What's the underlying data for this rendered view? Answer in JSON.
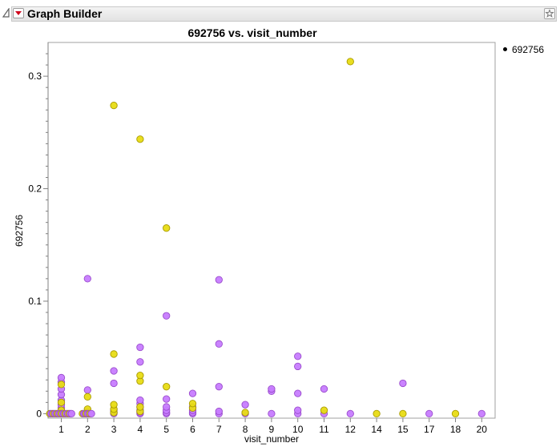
{
  "window": {
    "title": "Graph Builder",
    "icons": {
      "collapse": "disclosure-triangle-icon",
      "menu": "red-triangle-menu-icon",
      "star": "star-icon"
    }
  },
  "legend": {
    "label": "692756"
  },
  "colors": {
    "purple": "#c77cff",
    "purple_stroke": "#9a4ccc",
    "yellow": "#e8dc14",
    "yellow_stroke": "#a89a00"
  },
  "chart_data": {
    "type": "scatter",
    "title": "692756 vs. visit_number",
    "xlabel": "visit_number",
    "ylabel": "692756",
    "categories": [
      "1",
      "2",
      "3",
      "4",
      "5",
      "6",
      "7",
      "8",
      "9",
      "10",
      "11",
      "12",
      "14",
      "15",
      "17",
      "18",
      "20"
    ],
    "yticks": [
      0,
      0.1,
      0.2,
      0.3
    ],
    "ytick_labels": [
      "0",
      "0.1",
      "0.2",
      "0.3"
    ],
    "ylim": [
      -0.004,
      0.33
    ],
    "grid": false,
    "legend_position": "top-right",
    "series": [
      {
        "color_name": "purple",
        "points": [
          [
            "1",
            0
          ],
          [
            "1",
            0.002
          ],
          [
            "1",
            0.005
          ],
          [
            "1",
            0.008
          ],
          [
            "1",
            0.012
          ],
          [
            "1",
            0.017
          ],
          [
            "1",
            0.022
          ],
          [
            "1",
            0.028
          ],
          [
            "1",
            0.032
          ],
          [
            "2",
            0
          ],
          [
            "2",
            0.001
          ],
          [
            "2",
            0.002
          ],
          [
            "2",
            0.021
          ],
          [
            "2",
            0.12
          ],
          [
            "3",
            0
          ],
          [
            "3",
            0.001
          ],
          [
            "3",
            0.003
          ],
          [
            "3",
            0.027
          ],
          [
            "3",
            0.038
          ],
          [
            "4",
            0
          ],
          [
            "4",
            0.001
          ],
          [
            "4",
            0.003
          ],
          [
            "4",
            0.006
          ],
          [
            "4",
            0.009
          ],
          [
            "4",
            0.012
          ],
          [
            "4",
            0.046
          ],
          [
            "4",
            0.059
          ],
          [
            "5",
            0
          ],
          [
            "5",
            0.001
          ],
          [
            "5",
            0.003
          ],
          [
            "5",
            0.006
          ],
          [
            "5",
            0.013
          ],
          [
            "5",
            0.087
          ],
          [
            "6",
            0
          ],
          [
            "6",
            0.001
          ],
          [
            "6",
            0.003
          ],
          [
            "6",
            0.006
          ],
          [
            "6",
            0.018
          ],
          [
            "7",
            0
          ],
          [
            "7",
            0.002
          ],
          [
            "7",
            0.024
          ],
          [
            "7",
            0.062
          ],
          [
            "7",
            0.119
          ],
          [
            "8",
            0
          ],
          [
            "8",
            0.008
          ],
          [
            "9",
            0
          ],
          [
            "9",
            0.02
          ],
          [
            "9",
            0.022
          ],
          [
            "10",
            0
          ],
          [
            "10",
            0.003
          ],
          [
            "10",
            0.018
          ],
          [
            "10",
            0.042
          ],
          [
            "10",
            0.051
          ],
          [
            "11",
            0
          ],
          [
            "11",
            0.022
          ],
          [
            "12",
            0
          ],
          [
            "15",
            0.027
          ],
          [
            "17",
            0
          ],
          [
            "20",
            0
          ]
        ]
      },
      {
        "color_name": "yellow",
        "points": [
          [
            "1",
            0
          ],
          [
            "1",
            0.003
          ],
          [
            "1",
            0.01
          ],
          [
            "1",
            0.026
          ],
          [
            "2",
            0
          ],
          [
            "2",
            0.004
          ],
          [
            "2",
            0.015
          ],
          [
            "3",
            0.001
          ],
          [
            "3",
            0.004
          ],
          [
            "3",
            0.008
          ],
          [
            "3",
            0.053
          ],
          [
            "3",
            0.274
          ],
          [
            "4",
            0.002
          ],
          [
            "4",
            0.006
          ],
          [
            "4",
            0.029
          ],
          [
            "4",
            0.034
          ],
          [
            "4",
            0.244
          ],
          [
            "5",
            0.024
          ],
          [
            "5",
            0.165
          ],
          [
            "6",
            0.005
          ],
          [
            "6",
            0.009
          ],
          [
            "8",
            0.001
          ],
          [
            "11",
            0.003
          ],
          [
            "12",
            0.313
          ],
          [
            "14",
            0
          ],
          [
            "15",
            0
          ],
          [
            "18",
            0
          ]
        ]
      }
    ]
  }
}
